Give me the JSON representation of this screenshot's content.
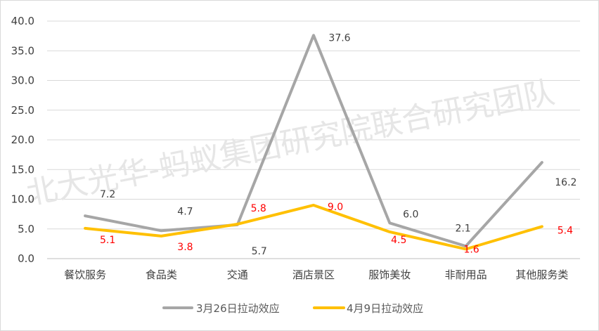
{
  "chart_data": {
    "type": "line",
    "categories": [
      "餐饮服务",
      "食品类",
      "交通",
      "酒店景区",
      "服饰美妆",
      "非耐用品",
      "其他服务类"
    ],
    "series": [
      {
        "name": "3月26日拉动效应",
        "values": [
          7.2,
          4.7,
          5.7,
          37.6,
          6.0,
          2.1,
          16.2
        ],
        "color": "#a6a6a6",
        "label_color": "#404040"
      },
      {
        "name": "4月9日拉动效应",
        "values": [
          5.1,
          3.8,
          5.8,
          9.0,
          4.5,
          1.6,
          5.4
        ],
        "color": "#ffc000",
        "label_color": "#ff0000"
      }
    ],
    "ylim": [
      0,
      40
    ],
    "yticks": [
      "0.0",
      "5.0",
      "10.0",
      "15.0",
      "20.0",
      "25.0",
      "30.0",
      "35.0",
      "40.0"
    ],
    "grid": true,
    "legend": "bottom",
    "title": "",
    "xlabel": "",
    "ylabel": ""
  },
  "watermark": "北大光华-蚂蚁集团研究院联合研究团队"
}
